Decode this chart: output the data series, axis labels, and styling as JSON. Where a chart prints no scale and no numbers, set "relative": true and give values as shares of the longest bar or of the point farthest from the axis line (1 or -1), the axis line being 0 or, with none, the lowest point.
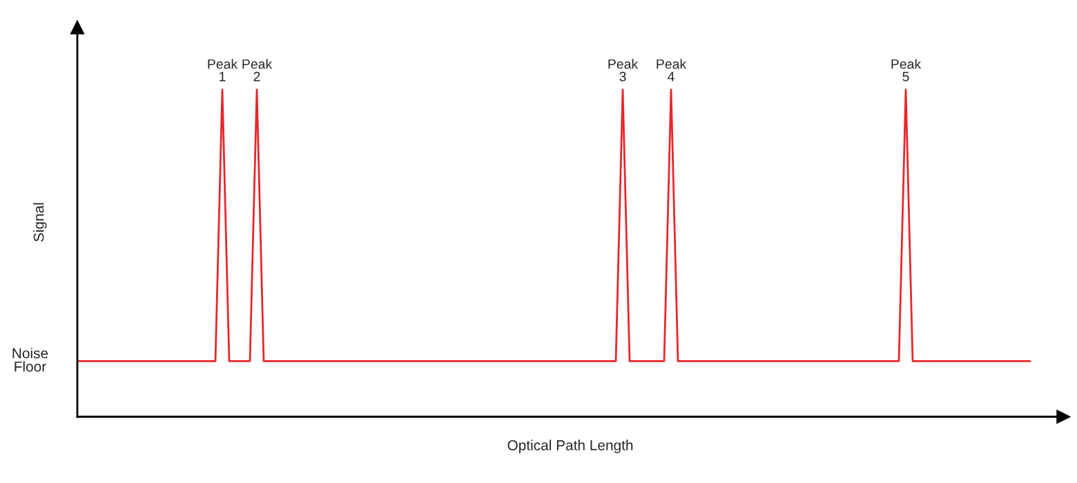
{
  "chart_data": {
    "type": "line",
    "relative": true,
    "xlabel": "Optical Path Length",
    "ylabel": "Signal",
    "categories": [
      null,
      null,
      null,
      null,
      null,
      null,
      null,
      null,
      null,
      null,
      null,
      null,
      null,
      null,
      null,
      null,
      null,
      null,
      null,
      null,
      null,
      null,
      null,
      null,
      null,
      null,
      null,
      null,
      null,
      null,
      null,
      null,
      null,
      null,
      null,
      null,
      null,
      null,
      null,
      null,
      null,
      null,
      null,
      null,
      null,
      null,
      null,
      null,
      null,
      null,
      null,
      null,
      null,
      null,
      null,
      null,
      null,
      null,
      null,
      null,
      null,
      null,
      null,
      null,
      null,
      null,
      null,
      null,
      null,
      null,
      null,
      null,
      null,
      null,
      null,
      null,
      null,
      null,
      null,
      null,
      null,
      null,
      null,
      null,
      null,
      null,
      null,
      null,
      null,
      null,
      null,
      null,
      null,
      null,
      null,
      null,
      null,
      null,
      null,
      null,
      null,
      null,
      null,
      null,
      null,
      null,
      null,
      null,
      null,
      null,
      null,
      null,
      null,
      null,
      null,
      null,
      null,
      null,
      null,
      null,
      null,
      null,
      null,
      null,
      null,
      null,
      null,
      null,
      null,
      null,
      null,
      null,
      null,
      null,
      null,
      null,
      null,
      null,
      null
    ],
    "series": [
      {
        "color": "#e8262b",
        "values": [
          0.17,
          0.17,
          0.17,
          0.17,
          0.17,
          0.17,
          0.17,
          0.17,
          0.17,
          0.17,
          0.17,
          0.17,
          0.17,
          0.17,
          0.17,
          0.17,
          0.17,
          0.17,
          0.17,
          0.17,
          0.17,
          1,
          0.17,
          0.17,
          0.17,
          0.17,
          1,
          0.17,
          0.17,
          0.17,
          0.17,
          0.17,
          0.17,
          0.17,
          0.17,
          0.17,
          0.17,
          0.17,
          0.17,
          0.17,
          0.17,
          0.17,
          0.17,
          0.17,
          0.17,
          0.17,
          0.17,
          0.17,
          0.17,
          0.17,
          0.17,
          0.17,
          0.17,
          0.17,
          0.17,
          0.17,
          0.17,
          0.17,
          0.17,
          0.17,
          0.17,
          0.17,
          0.17,
          0.17,
          0.17,
          0.17,
          0.17,
          0.17,
          0.17,
          0.17,
          0.17,
          0.17,
          0.17,
          0.17,
          0.17,
          0.17,
          0.17,
          0.17,
          0.17,
          1,
          0.17,
          0.17,
          0.17,
          0.17,
          0.17,
          0.17,
          1,
          0.17,
          0.17,
          0.17,
          0.17,
          0.17,
          0.17,
          0.17,
          0.17,
          0.17,
          0.17,
          0.17,
          0.17,
          0.17,
          0.17,
          0.17,
          0.17,
          0.17,
          0.17,
          0.17,
          0.17,
          0.17,
          0.17,
          0.17,
          0.17,
          0.17,
          0.17,
          0.17,
          0.17,
          0.17,
          0.17,
          0.17,
          0.17,
          0.17,
          1,
          0.17,
          0.17,
          0.17,
          0.17,
          0.17,
          0.17,
          0.17,
          0.17,
          0.17,
          0.17,
          0.17,
          0.17,
          0.17,
          0.17,
          0.17,
          0.17,
          0.17,
          0.17
        ]
      }
    ],
    "annotations": [
      {
        "text": "Peak\n1",
        "y": 1
      },
      {
        "text": "Peak\n2",
        "y": 1
      },
      {
        "text": "Peak\n3",
        "y": 1
      },
      {
        "text": "Peak\n4",
        "y": 1
      },
      {
        "text": "Peak\n5",
        "y": 1
      },
      "Noise\nFloor"
    ],
    "legend": false
  }
}
